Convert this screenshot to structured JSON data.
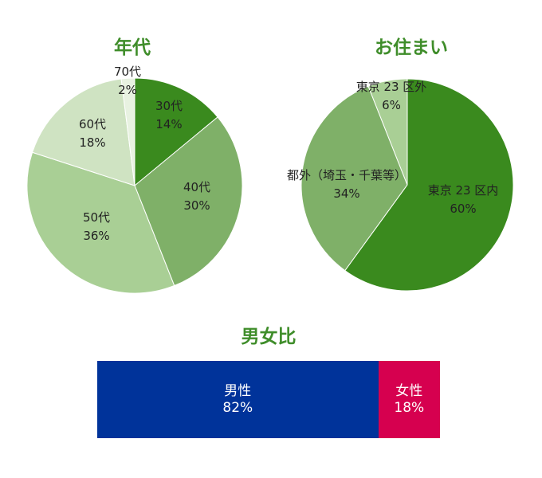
{
  "chart_data": [
    {
      "type": "pie",
      "title": "年代",
      "categories": [
        "30代",
        "40代",
        "50代",
        "60代",
        "70代"
      ],
      "values": [
        14,
        30,
        36,
        18,
        2
      ],
      "value_labels": [
        "14%",
        "30%",
        "36%",
        "18%",
        "2%"
      ],
      "colors": [
        "#3a8a1e",
        "#7fb068",
        "#a9cf95",
        "#cfe3c2",
        "#e8f2e1"
      ]
    },
    {
      "type": "pie",
      "title": "お住まい",
      "categories": [
        "東京 23 区内",
        "都外（埼玉・千葉等）",
        "東京 23 区外"
      ],
      "values": [
        60,
        34,
        6
      ],
      "value_labels": [
        "60%",
        "34%",
        "6%"
      ],
      "colors": [
        "#3a8a1e",
        "#7fb068",
        "#a9cf95"
      ]
    },
    {
      "type": "bar",
      "title": "男女比",
      "categories": [
        "男性",
        "女性"
      ],
      "values": [
        82,
        18
      ],
      "value_labels": [
        "82%",
        "18%"
      ],
      "colors": [
        "#00339a",
        "#d6004f"
      ]
    }
  ]
}
